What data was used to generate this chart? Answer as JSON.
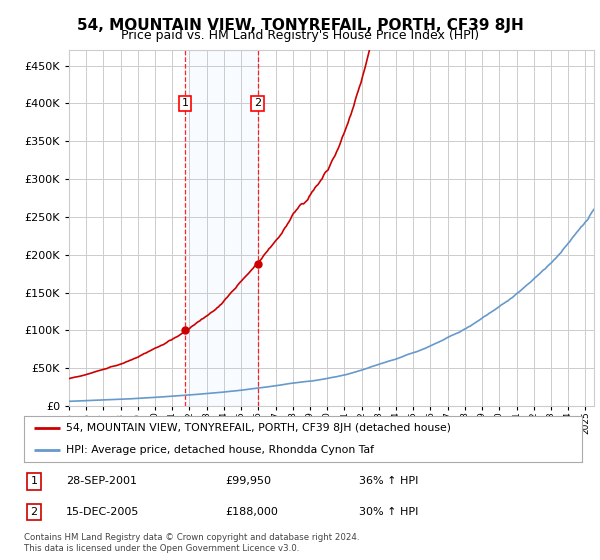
{
  "title": "54, MOUNTAIN VIEW, TONYREFAIL, PORTH, CF39 8JH",
  "subtitle": "Price paid vs. HM Land Registry's House Price Index (HPI)",
  "legend_line1": "54, MOUNTAIN VIEW, TONYREFAIL, PORTH, CF39 8JH (detached house)",
  "legend_line2": "HPI: Average price, detached house, Rhondda Cynon Taf",
  "annotation1_label": "1",
  "annotation1_date": "28-SEP-2001",
  "annotation1_price": "£99,950",
  "annotation1_hpi": "36% ↑ HPI",
  "annotation2_label": "2",
  "annotation2_date": "15-DEC-2005",
  "annotation2_price": "£188,000",
  "annotation2_hpi": "30% ↑ HPI",
  "footer": "Contains HM Land Registry data © Crown copyright and database right 2024.\nThis data is licensed under the Open Government Licence v3.0.",
  "sale1_x": 2001.75,
  "sale1_y": 99950,
  "sale2_x": 2005.96,
  "sale2_y": 188000,
  "ylim": [
    0,
    470000
  ],
  "xlim_start": 1995.0,
  "xlim_end": 2025.5,
  "red_color": "#cc0000",
  "blue_color": "#6699cc",
  "shade_color": "#ddeeff",
  "grid_color": "#cccccc",
  "background_color": "#ffffff"
}
